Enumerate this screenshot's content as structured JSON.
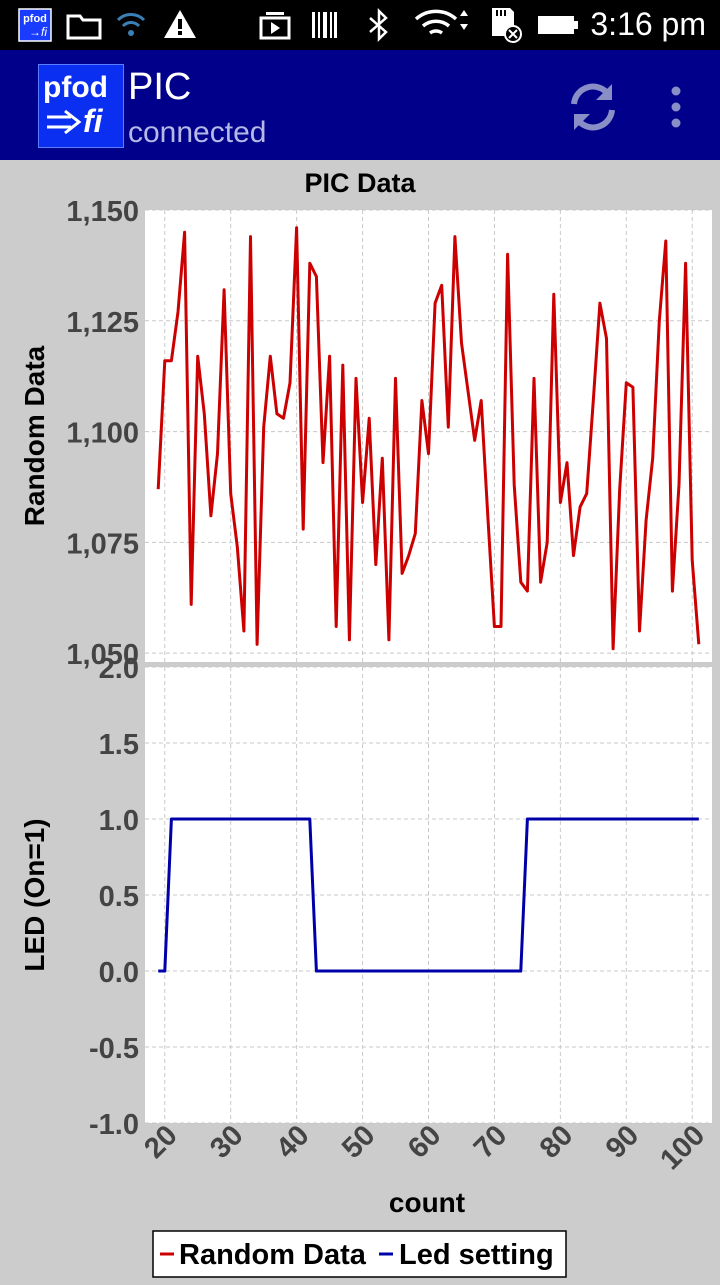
{
  "status_bar": {
    "time": "3:16 pm"
  },
  "app_bar": {
    "logo_top": "pfod",
    "logo_bottom": "fi",
    "title": "PIC",
    "subtitle": "connected"
  },
  "colors": {
    "app_bar": "#00008b",
    "series_random": "#cc0000",
    "series_led": "#0000aa"
  },
  "chart_data": [
    {
      "type": "line",
      "title": "PIC Data",
      "xlabel": "",
      "ylabel": "Random Data",
      "xlim": [
        17,
        103
      ],
      "ylim": [
        1048,
        1150
      ],
      "yticks": [
        1050,
        1075,
        1100,
        1125,
        1150
      ],
      "ytick_labels": [
        "1,050",
        "1,075",
        "1,100",
        "1,125",
        "1,150"
      ],
      "grid": true,
      "series": [
        {
          "name": "Random Data",
          "color": "#cc0000",
          "x": [
            19,
            20,
            21,
            22,
            23,
            24,
            25,
            26,
            27,
            28,
            29,
            30,
            31,
            32,
            33,
            34,
            35,
            36,
            37,
            38,
            39,
            40,
            41,
            42,
            43,
            44,
            45,
            46,
            47,
            48,
            49,
            50,
            51,
            52,
            53,
            54,
            55,
            56,
            57,
            58,
            59,
            60,
            61,
            62,
            63,
            64,
            65,
            66,
            67,
            68,
            69,
            70,
            71,
            72,
            73,
            74,
            75,
            76,
            77,
            78,
            79,
            80,
            81,
            82,
            83,
            84,
            85,
            86,
            87,
            88,
            89,
            90,
            91,
            92,
            93,
            94,
            95,
            96,
            97,
            98,
            99,
            100,
            101
          ],
          "y": [
            1087,
            1116,
            1116,
            1127,
            1145,
            1061,
            1117,
            1104,
            1081,
            1095,
            1132,
            1086,
            1074,
            1055,
            1144,
            1052,
            1101,
            1117,
            1104,
            1103,
            1111,
            1146,
            1078,
            1138,
            1135,
            1093,
            1117,
            1056,
            1115,
            1053,
            1112,
            1084,
            1103,
            1070,
            1094,
            1053,
            1112,
            1068,
            1072,
            1077,
            1107,
            1095,
            1129,
            1133,
            1101,
            1144,
            1120,
            1109,
            1098,
            1107,
            1081,
            1056,
            1056,
            1140,
            1088,
            1066,
            1064,
            1112,
            1066,
            1075,
            1131,
            1084,
            1093,
            1072,
            1083,
            1086,
            1107,
            1129,
            1121,
            1051,
            1087,
            1111,
            1110,
            1055,
            1080,
            1094,
            1125,
            1143,
            1064,
            1088,
            1138,
            1071,
            1052
          ]
        }
      ]
    },
    {
      "type": "line",
      "xlabel": "count",
      "ylabel": "LED (On=1)",
      "xlim": [
        17,
        103
      ],
      "ylim": [
        -1.0,
        2.0
      ],
      "xticks": [
        20,
        30,
        40,
        50,
        60,
        70,
        80,
        90,
        100
      ],
      "yticks": [
        -1.0,
        -0.5,
        0.0,
        0.5,
        1.0,
        1.5,
        2.0
      ],
      "ytick_labels": [
        "-1.0",
        "-0.5",
        "0.0",
        "0.5",
        "1.0",
        "1.5",
        "2.0"
      ],
      "grid": true,
      "series": [
        {
          "name": "Led setting",
          "color": "#0000aa",
          "x": [
            19,
            20,
            21,
            42,
            43,
            74,
            75,
            101
          ],
          "y": [
            0,
            0,
            1,
            1,
            0,
            0,
            1,
            1
          ]
        }
      ]
    }
  ],
  "legend": {
    "placement": "bottom-center",
    "items": [
      "Random Data",
      "Led setting"
    ]
  }
}
